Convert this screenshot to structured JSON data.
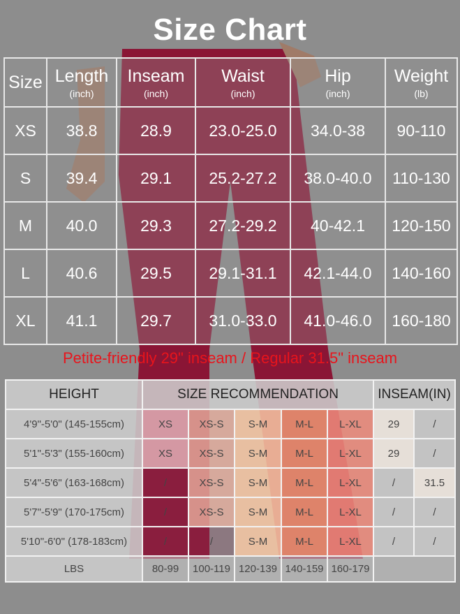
{
  "title": "Size Chart",
  "size_table": {
    "headers": [
      {
        "label": "Size",
        "unit": ""
      },
      {
        "label": "Length",
        "unit": "(inch)"
      },
      {
        "label": "Inseam",
        "unit": "(inch)"
      },
      {
        "label": "Waist",
        "unit": "(inch)"
      },
      {
        "label": "Hip",
        "unit": "(inch)"
      },
      {
        "label": "Weight",
        "unit": "(lb)"
      }
    ],
    "rows": [
      [
        "XS",
        "38.8",
        "28.9",
        "23.0-25.0",
        "34.0-38",
        "90-110"
      ],
      [
        "S",
        "39.4",
        "29.1",
        "25.2-27.2",
        "38.0-40.0",
        "110-130"
      ],
      [
        "M",
        "40.0",
        "29.3",
        "27.2-29.2",
        "40-42.1",
        "120-150"
      ],
      [
        "L",
        "40.6",
        "29.5",
        "29.1-31.1",
        "42.1-44.0",
        "140-160"
      ],
      [
        "XL",
        "41.1",
        "29.7",
        "31.0-33.0",
        "41.0-46.0",
        "160-180"
      ]
    ]
  },
  "note": "Petite-friendly 29\" inseam / Regular 31.5\" inseam",
  "recommendation_table": {
    "headers": {
      "height": "HEIGHT",
      "size": "SIZE RECOMMENDATION",
      "inseam": "INSEAM(IN)"
    },
    "rows": [
      {
        "height": "4'9\"-5'0\" (145-155cm)",
        "sizes": [
          "XS",
          "XS-S",
          "S-M",
          "M-L",
          "L-XL"
        ],
        "inseam": [
          "29",
          "/"
        ]
      },
      {
        "height": "5'1\"-5'3\" (155-160cm)",
        "sizes": [
          "XS",
          "XS-S",
          "S-M",
          "M-L",
          "L-XL"
        ],
        "inseam": [
          "29",
          "/"
        ]
      },
      {
        "height": "5'4\"-5'6\" (163-168cm)",
        "sizes": [
          "/",
          "XS-S",
          "S-M",
          "M-L",
          "L-XL"
        ],
        "inseam": [
          "/",
          "31.5"
        ]
      },
      {
        "height": "5'7\"-5'9\" (170-175cm)",
        "sizes": [
          "/",
          "XS-S",
          "S-M",
          "M-L",
          "L-XL"
        ],
        "inseam": [
          "/",
          "/"
        ]
      },
      {
        "height": "5'10\"-6'0\" (178-183cm)",
        "sizes": [
          "/",
          "/",
          "S-M",
          "M-L",
          "L-XL"
        ],
        "inseam": [
          "/",
          "/"
        ]
      }
    ],
    "lbs_label": "LBS",
    "lbs": [
      "80-99",
      "100-119",
      "120-139",
      "140-159",
      "160-179"
    ]
  },
  "colors": {
    "title": "#ffffff",
    "note": "#e8141c",
    "pants": "#8a1535",
    "size_columns": [
      "rgba(236,196,200,0.75)",
      "rgba(232,176,160,0.8)",
      "rgba(248,200,165,0.85)",
      "rgba(236,150,115,0.85)",
      "rgba(240,140,125,0.85)"
    ],
    "inseam_highlight": "rgba(240,232,224,0.9)",
    "neutral": "rgba(205,205,205,0.85)"
  }
}
